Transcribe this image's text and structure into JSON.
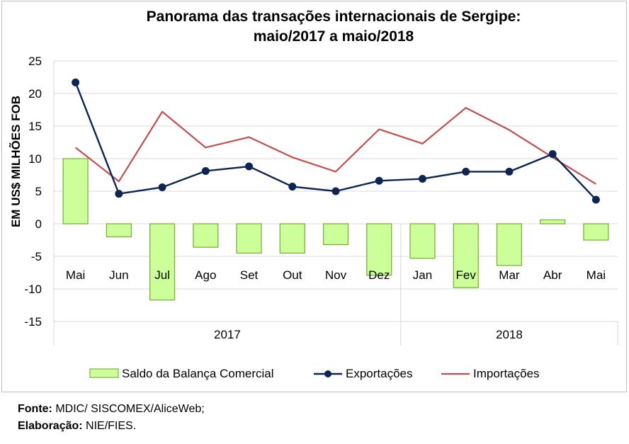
{
  "chart_data": {
    "type": "bar+line",
    "title_lines": [
      "Panorama das transações internacionais de Sergipe:",
      "maio/2017 a maio/2018"
    ],
    "ylabel": "EM US$ MILHÕES FOB",
    "ylim": [
      -15,
      25
    ],
    "yticks": [
      25,
      20,
      15,
      10,
      5,
      0,
      -5,
      -10,
      -15
    ],
    "gridlines": true,
    "categories": [
      "Mai",
      "Jun",
      "Jul",
      "Ago",
      "Set",
      "Out",
      "Nov",
      "Dez",
      "Jan",
      "Fev",
      "Mar",
      "Abr",
      "Mai"
    ],
    "year_groups": [
      {
        "label": "2017",
        "start": 0,
        "end": 7
      },
      {
        "label": "2018",
        "start": 8,
        "end": 12
      }
    ],
    "series": [
      {
        "name": "Saldo da Balança Comercial",
        "type": "bar",
        "color": "#ccff99",
        "border": "#7faf3a",
        "values": [
          10.0,
          -2.0,
          -11.7,
          -3.6,
          -4.5,
          -4.5,
          -3.2,
          -7.9,
          -5.3,
          -9.8,
          -6.4,
          0.6,
          -2.5
        ]
      },
      {
        "name": "Exportações",
        "type": "line",
        "color": "#0d2553",
        "marker": "circle",
        "values": [
          21.7,
          4.6,
          5.6,
          8.1,
          8.8,
          5.7,
          5.0,
          6.6,
          6.9,
          8.0,
          8.0,
          10.7,
          3.7
        ]
      },
      {
        "name": "Importações",
        "type": "line",
        "color": "#c0504d",
        "values": [
          11.7,
          6.5,
          17.2,
          11.7,
          13.3,
          10.2,
          8.0,
          14.5,
          12.3,
          17.8,
          14.4,
          10.2,
          6.1
        ]
      }
    ],
    "legend_position": "bottom"
  },
  "footer": {
    "source_label": "Fonte:",
    "source_text": " MDIC/ SISCOMEX/AliceWeb;",
    "prepared_label": "Elaboração:",
    "prepared_text": " NIE/FIES."
  }
}
